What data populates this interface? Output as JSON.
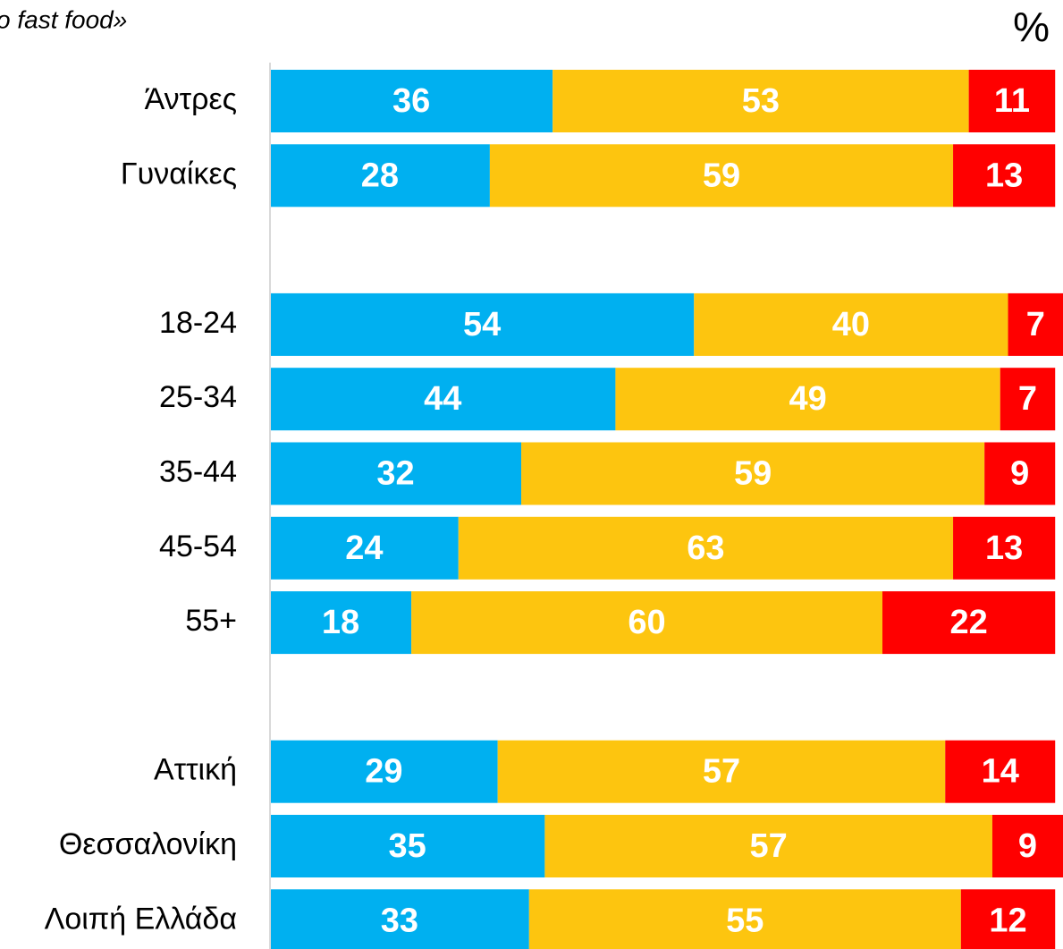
{
  "chart_data": {
    "type": "stacked-barh",
    "title": "o fast food»",
    "unit": "%",
    "categories": [
      "Άντρες",
      "Γυναίκες",
      null,
      "18-24",
      "25-34",
      "35-44",
      "45-54",
      "55+",
      null,
      "Αττική",
      "Θεσσαλονίκη",
      "Λοιπή Ελλάδα"
    ],
    "series": [
      {
        "color": "#00b0f0",
        "values": [
          36,
          28,
          null,
          54,
          44,
          32,
          24,
          18,
          null,
          29,
          35,
          33
        ]
      },
      {
        "color": "#fdc50f",
        "values": [
          53,
          59,
          null,
          40,
          49,
          59,
          63,
          60,
          null,
          57,
          57,
          55
        ]
      },
      {
        "color": "#ff0000",
        "values": [
          11,
          13,
          null,
          7,
          7,
          9,
          13,
          22,
          null,
          14,
          9,
          12
        ]
      }
    ],
    "xlim": [
      0,
      101
    ]
  }
}
